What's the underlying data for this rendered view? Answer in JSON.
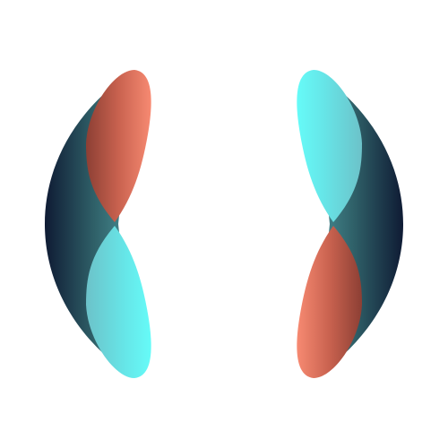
{
  "artwork": {
    "name": "two-mirrored-twisted-ribbons",
    "colors": {
      "background": "#ffffff",
      "navy": "#0f1b34",
      "teal": "#3e7f86",
      "cyan": "#66fbf8",
      "cyan_soft": "#6fd6dc",
      "coral": "#f78a72",
      "rust": "#8c3f34"
    }
  }
}
